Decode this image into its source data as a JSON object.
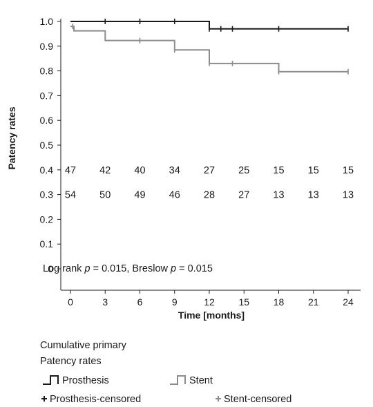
{
  "chart_data": {
    "type": "line",
    "subtype": "kaplan-meier",
    "xlabel": "Time [months]",
    "ylabel": "Patency rates",
    "xlim": [
      0,
      24
    ],
    "ylim": [
      0,
      1
    ],
    "x_ticks": [
      0,
      3,
      6,
      9,
      12,
      15,
      18,
      21,
      24
    ],
    "y_ticks": [
      {
        "value": 0,
        "label": "0"
      },
      {
        "value": 0.1,
        "label": "0.1"
      },
      {
        "value": 0.2,
        "label": "0.2"
      },
      {
        "value": 0.3,
        "label": "0.3"
      },
      {
        "value": 0.4,
        "label": "0.4"
      },
      {
        "value": 0.5,
        "label": "0.5"
      },
      {
        "value": 0.6,
        "label": "0.6"
      },
      {
        "value": 0.7,
        "label": "0.7"
      },
      {
        "value": 0.8,
        "label": "0.8"
      },
      {
        "value": 0.9,
        "label": "0.9"
      },
      {
        "value": 1.0,
        "label": "1.0"
      }
    ],
    "grid": false,
    "series": [
      {
        "name": "Prosthesis",
        "color": "#1a1a1a",
        "step_points": [
          [
            0,
            1.0
          ],
          [
            12,
            1.0
          ],
          [
            12,
            0.97
          ],
          [
            24,
            0.97
          ]
        ],
        "censored": [
          [
            3,
            1.0
          ],
          [
            6,
            1.0
          ],
          [
            9,
            1.0
          ],
          [
            12,
            0.97
          ],
          [
            13,
            0.97
          ],
          [
            14,
            0.97
          ],
          [
            18,
            0.97
          ],
          [
            24,
            0.97
          ]
        ]
      },
      {
        "name": "Stent",
        "color": "#8c8c8c",
        "step_points": [
          [
            0,
            0.98
          ],
          [
            0.3,
            0.98
          ],
          [
            0.3,
            0.962
          ],
          [
            3,
            0.962
          ],
          [
            3,
            0.923
          ],
          [
            9,
            0.923
          ],
          [
            9,
            0.885
          ],
          [
            12,
            0.885
          ],
          [
            12,
            0.83
          ],
          [
            18,
            0.83
          ],
          [
            18,
            0.797
          ],
          [
            24,
            0.797
          ]
        ],
        "censored": [
          [
            0.2,
            0.98
          ],
          [
            6,
            0.923
          ],
          [
            9,
            0.885
          ],
          [
            12,
            0.83
          ],
          [
            14,
            0.83
          ],
          [
            18,
            0.797
          ],
          [
            24,
            0.797
          ]
        ]
      }
    ],
    "risk_table": [
      {
        "y": 0.4,
        "values": [
          "47",
          "42",
          "40",
          "34",
          "27",
          "25",
          "15",
          "15",
          "15"
        ]
      },
      {
        "y": 0.3,
        "values": [
          "54",
          "50",
          "49",
          "46",
          "28",
          "27",
          "13",
          "13",
          "13"
        ]
      }
    ],
    "risk_table_x": [
      0,
      3,
      6,
      9,
      12,
      15,
      18,
      21,
      24
    ],
    "annotation": {
      "prefix": "Log rank ",
      "var1": "p",
      "mid": " = 0.015, Breslow ",
      "var2": "p",
      "suffix": " = 0.015"
    },
    "legend": {
      "title_line1": "Cumulative primary",
      "title_line2": "Patency rates",
      "line_items": [
        {
          "label": "Prosthesis",
          "color": "#1a1a1a"
        },
        {
          "label": "Stent",
          "color": "#8c8c8c"
        }
      ],
      "censor_items": [
        {
          "label": "Prosthesis-censored",
          "color": "#1a1a1a"
        },
        {
          "label": "Stent-censored",
          "color": "#8c8c8c"
        }
      ]
    }
  }
}
